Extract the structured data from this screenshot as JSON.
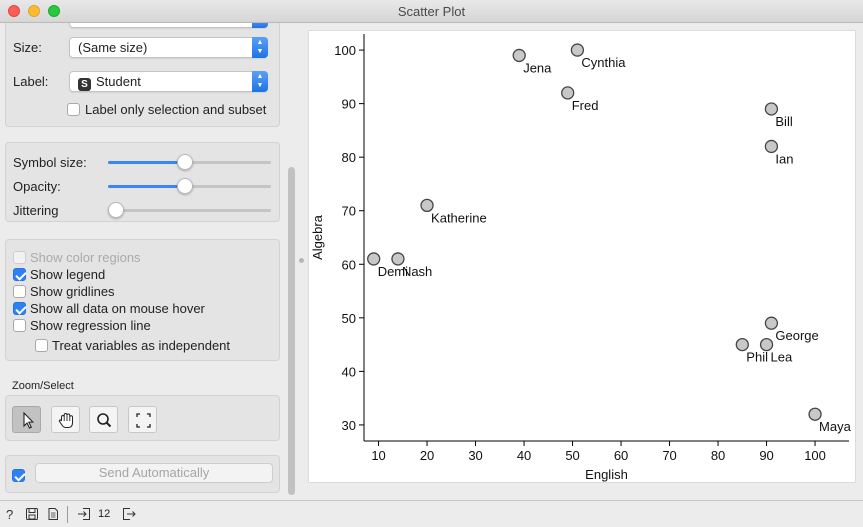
{
  "window": {
    "title": "Scatter Plot"
  },
  "attributes": {
    "size_label": "Size:",
    "size_value": "(Same size)",
    "label_label": "Label:",
    "label_value": "Student",
    "label_badge": "S",
    "label_only_selection": {
      "label": "Label only selection and subset",
      "checked": false
    }
  },
  "sliders": [
    {
      "label": "Symbol size:",
      "value": 0.47
    },
    {
      "label": "Opacity:",
      "value": 0.47
    },
    {
      "label": "Jittering",
      "value": 0.0
    }
  ],
  "options": [
    {
      "label": "Show color regions",
      "checked": false,
      "disabled": true
    },
    {
      "label": "Show legend",
      "checked": true,
      "disabled": false
    },
    {
      "label": "Show gridlines",
      "checked": false,
      "disabled": false
    },
    {
      "label": "Show all data on mouse hover",
      "checked": true,
      "disabled": false
    },
    {
      "label": "Show regression line",
      "checked": false,
      "disabled": false
    },
    {
      "label": "Treat variables as independent",
      "checked": false,
      "disabled": false
    }
  ],
  "zoom_select": {
    "title": "Zoom/Select",
    "tools": [
      {
        "name": "pointer-icon",
        "active": true
      },
      {
        "name": "hand-icon",
        "active": false
      },
      {
        "name": "zoom-icon",
        "active": false
      },
      {
        "name": "fit-icon",
        "active": false
      }
    ]
  },
  "send": {
    "checked": true,
    "label": "Send Automatically"
  },
  "statusbar": {
    "output_count": "12"
  },
  "chart_data": {
    "type": "scatter",
    "xlabel": "English",
    "ylabel": "Algebra",
    "xlim": [
      7,
      107
    ],
    "ylim": [
      27,
      103
    ],
    "xticks": [
      10,
      20,
      30,
      40,
      50,
      60,
      70,
      80,
      90,
      100
    ],
    "yticks": [
      30,
      40,
      50,
      60,
      70,
      80,
      90,
      100
    ],
    "grid": false,
    "points": [
      {
        "label": "Jena",
        "x": 39,
        "y": 99
      },
      {
        "label": "Cynthia",
        "x": 51,
        "y": 100
      },
      {
        "label": "Fred",
        "x": 49,
        "y": 92
      },
      {
        "label": "Bill",
        "x": 91,
        "y": 89
      },
      {
        "label": "Ian",
        "x": 91,
        "y": 82
      },
      {
        "label": "Katherine",
        "x": 20,
        "y": 71
      },
      {
        "label": "Demi",
        "x": 9,
        "y": 61
      },
      {
        "label": "Nash",
        "x": 14,
        "y": 61
      },
      {
        "label": "George",
        "x": 91,
        "y": 49
      },
      {
        "label": "Phil",
        "x": 85,
        "y": 45
      },
      {
        "label": "Lea",
        "x": 90,
        "y": 45
      },
      {
        "label": "Maya",
        "x": 100,
        "y": 32
      }
    ],
    "colors": {
      "point_fill": "#c8c8c8",
      "point_stroke": "#454545"
    }
  }
}
